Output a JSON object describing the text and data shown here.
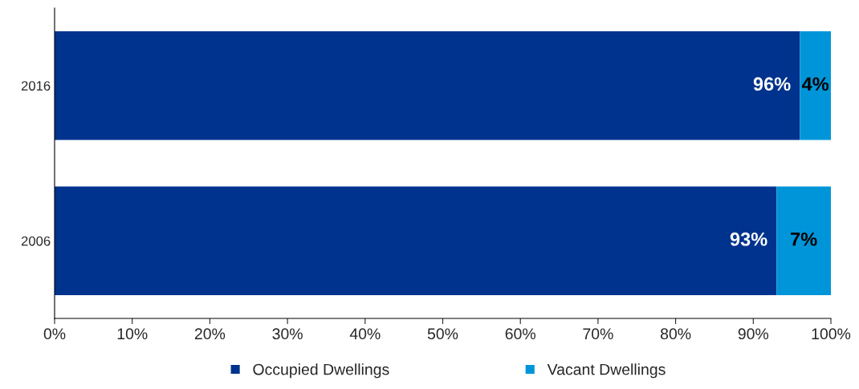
{
  "chart_data": {
    "type": "bar",
    "orientation": "horizontal",
    "stacked": true,
    "categories": [
      "2016",
      "2006"
    ],
    "series": [
      {
        "name": "Occupied Dwellings",
        "color": "#00338d",
        "values": [
          96,
          93
        ],
        "value_labels": [
          "96%",
          "93%"
        ]
      },
      {
        "name": "Vacant Dwellings",
        "color": "#0095d9",
        "values": [
          4,
          7
        ],
        "value_labels": [
          "4%",
          "7%"
        ]
      }
    ],
    "xlim": [
      0,
      100
    ],
    "xticks": [
      {
        "value": 0,
        "label": "0%"
      },
      {
        "value": 10,
        "label": "10%"
      },
      {
        "value": 20,
        "label": "20%"
      },
      {
        "value": 30,
        "label": "30%"
      },
      {
        "value": 40,
        "label": "40%"
      },
      {
        "value": 50,
        "label": "50%"
      },
      {
        "value": 60,
        "label": "60%"
      },
      {
        "value": 70,
        "label": "70%"
      },
      {
        "value": 80,
        "label": "80%"
      },
      {
        "value": 90,
        "label": "90%"
      },
      {
        "value": 100,
        "label": "100%"
      }
    ],
    "grid": false,
    "legend": "bottom"
  }
}
